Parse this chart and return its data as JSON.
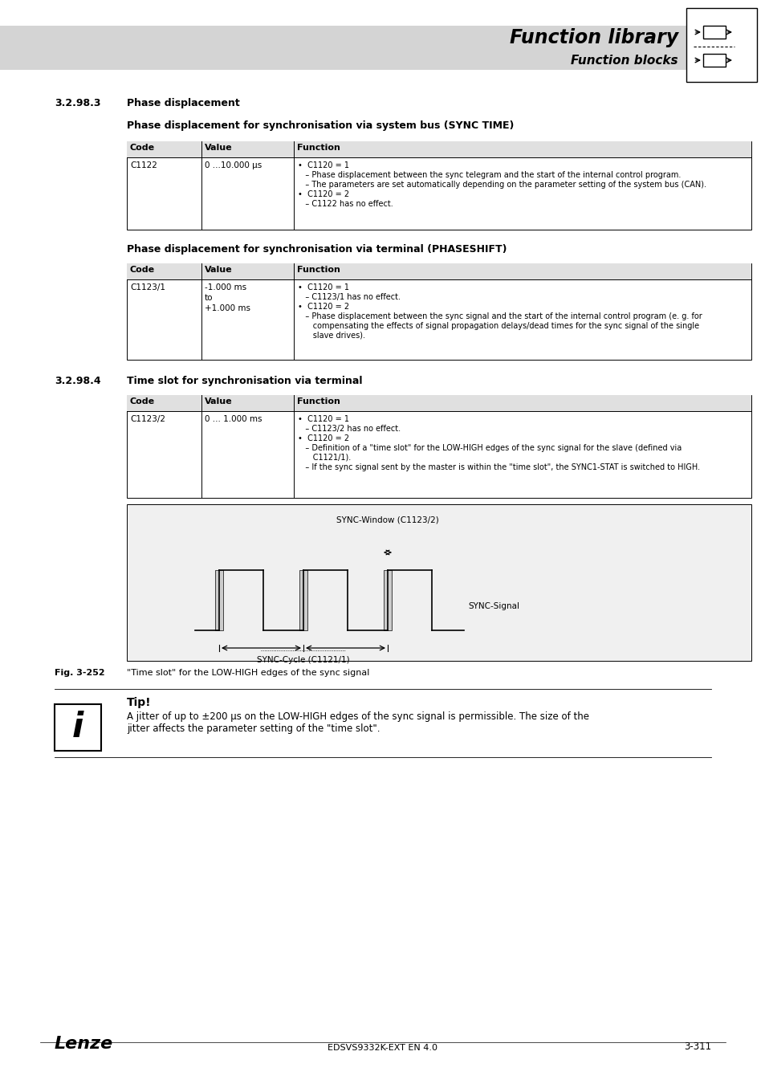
{
  "title_main": "Function library",
  "title_sub": "Function blocks",
  "section_num": "3.2.98.3",
  "section_title": "Phase displacement",
  "subsection1_title": "Phase displacement for synchronisation via system bus (SYNC TIME)",
  "subsection2_title": "Phase displacement for synchronisation via terminal (PHASESHIFT)",
  "section2_num": "3.2.98.4",
  "section2_title": "Time slot for synchronisation via terminal",
  "table1_function_lines": [
    "•  C1120 = 1",
    "   – Phase displacement between the sync telegram and the start of the internal control program.",
    "   – The parameters are set automatically depending on the parameter setting of the system bus (CAN).",
    "•  C1120 = 2",
    "   – C1122 has no effect."
  ],
  "table2_function_lines": [
    "•  C1120 = 1",
    "   – C1123/1 has no effect.",
    "•  C1120 = 2",
    "   – Phase displacement between the sync signal and the start of the internal control program (e. g. for",
    "      compensating the effects of signal propagation delays/dead times for the sync signal of the single",
    "      slave drives)."
  ],
  "table3_function_lines": [
    "•  C1120 = 1",
    "   – C1123/2 has no effect.",
    "•  C1120 = 2",
    "   – Definition of a \"time slot\" for the LOW-HIGH edges of the sync signal for the slave (defined via",
    "      C1121/1).",
    "   – If the sync signal sent by the master is within the \"time slot\", the SYNC1-STAT is switched to HIGH."
  ],
  "fig_num": "Fig. 3-252",
  "fig_caption": "\"Time slot\" for the LOW-HIGH edges of the sync signal",
  "tip_title": "Tip!",
  "tip_text": "A jitter of up to ±200 μs on the LOW-HIGH edges of the sync signal is permissible. The size of the\njitter affects the parameter setting of the \"time slot\".",
  "footer_left": "Lenze",
  "footer_center": "EDSVS9332K-EXT EN 4.0",
  "footer_right": "3-311",
  "bg_color": "#ffffff",
  "header_bg": "#d4d4d4",
  "table_header_bg": "#e0e0e0",
  "diagram_bg": "#f0f0f0"
}
